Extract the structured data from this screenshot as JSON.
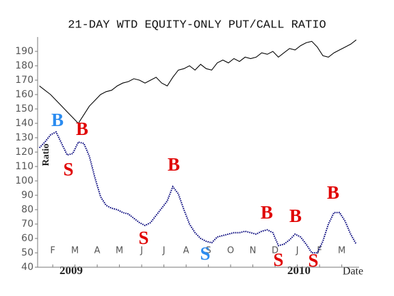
{
  "chart_data": {
    "type": "line",
    "title": "21-DAY WTD EQUITY-ONLY PUT/CALL RATIO",
    "y_label": "Ratio",
    "x_label": "Date",
    "year_labels": [
      "2009",
      "2010"
    ],
    "xlim": [
      0.32,
      14.78
    ],
    "xticks": [
      {
        "value": 1,
        "label": "F"
      },
      {
        "value": 2,
        "label": "M"
      },
      {
        "value": 3,
        "label": "A"
      },
      {
        "value": 4,
        "label": "M"
      },
      {
        "value": 5,
        "label": "J"
      },
      {
        "value": 6,
        "label": "J"
      },
      {
        "value": 7,
        "label": "A"
      },
      {
        "value": 8,
        "label": "S"
      },
      {
        "value": 9,
        "label": "O"
      },
      {
        "value": 10,
        "label": "N"
      },
      {
        "value": 11,
        "label": "D"
      },
      {
        "value": 12,
        "label": "J"
      },
      {
        "value": 13,
        "label": "F"
      },
      {
        "value": 14,
        "label": "M"
      }
    ],
    "ylim": [
      40,
      200
    ],
    "yticks": [
      40,
      50,
      60,
      70,
      80,
      90,
      100,
      110,
      120,
      130,
      140,
      150,
      160,
      170,
      180,
      190
    ],
    "x": [
      0.4,
      0.65,
      0.9,
      1.15,
      1.4,
      1.65,
      1.9,
      2.15,
      2.4,
      2.65,
      2.9,
      3.15,
      3.4,
      3.65,
      3.9,
      4.15,
      4.4,
      4.65,
      4.9,
      5.15,
      5.4,
      5.65,
      5.9,
      6.15,
      6.4,
      6.65,
      6.9,
      7.15,
      7.4,
      7.65,
      7.9,
      8.15,
      8.4,
      8.65,
      8.9,
      9.15,
      9.4,
      9.65,
      9.9,
      10.15,
      10.4,
      10.65,
      10.9,
      11.15,
      11.4,
      11.65,
      11.9,
      12.15,
      12.4,
      12.65,
      12.9,
      13.15,
      13.4,
      13.65,
      13.9,
      14.15,
      14.4,
      14.65
    ],
    "series": [
      {
        "color": "#000000",
        "style": "solid",
        "values": [
          166,
          163,
          160,
          156,
          152,
          148,
          144,
          140,
          146,
          152,
          156,
          160,
          162,
          163,
          166,
          168,
          169,
          171,
          170,
          168,
          170,
          172,
          168,
          166,
          172,
          177,
          178,
          180,
          177,
          181,
          178,
          177,
          182,
          184,
          182,
          185,
          183,
          186,
          185,
          186,
          189,
          188,
          190,
          186,
          189,
          192,
          191,
          194,
          196,
          197,
          193,
          187,
          186,
          189,
          191,
          193,
          195,
          198
        ]
      },
      {
        "color": "#00007a",
        "style": "dotted",
        "values": [
          123,
          127,
          132,
          134,
          126,
          118,
          119,
          127,
          126,
          117,
          102,
          89,
          83,
          81,
          80,
          78,
          77,
          74,
          71,
          69,
          71,
          76,
          81,
          86,
          96,
          91,
          80,
          70,
          64,
          60,
          58,
          57,
          61,
          62,
          63,
          64,
          64,
          65,
          64,
          63,
          65,
          66,
          64,
          55,
          56,
          59,
          63,
          61,
          56,
          50,
          50,
          58,
          70,
          78,
          78,
          72,
          63,
          56
        ]
      }
    ],
    "annotations": [
      {
        "text": "B",
        "color": "#2b8cf0"
      },
      {
        "text": "B",
        "color": "#e00000"
      },
      {
        "text": "S",
        "color": "#e00000"
      },
      {
        "text": "B",
        "color": "#e00000"
      },
      {
        "text": "S",
        "color": "#e00000"
      },
      {
        "text": "S",
        "color": "#2b8cf0"
      },
      {
        "text": "B",
        "color": "#e00000"
      },
      {
        "text": "B",
        "color": "#e00000"
      },
      {
        "text": "S",
        "color": "#e00000"
      },
      {
        "text": "S",
        "color": "#e00000"
      },
      {
        "text": "B",
        "color": "#e00000"
      }
    ]
  }
}
